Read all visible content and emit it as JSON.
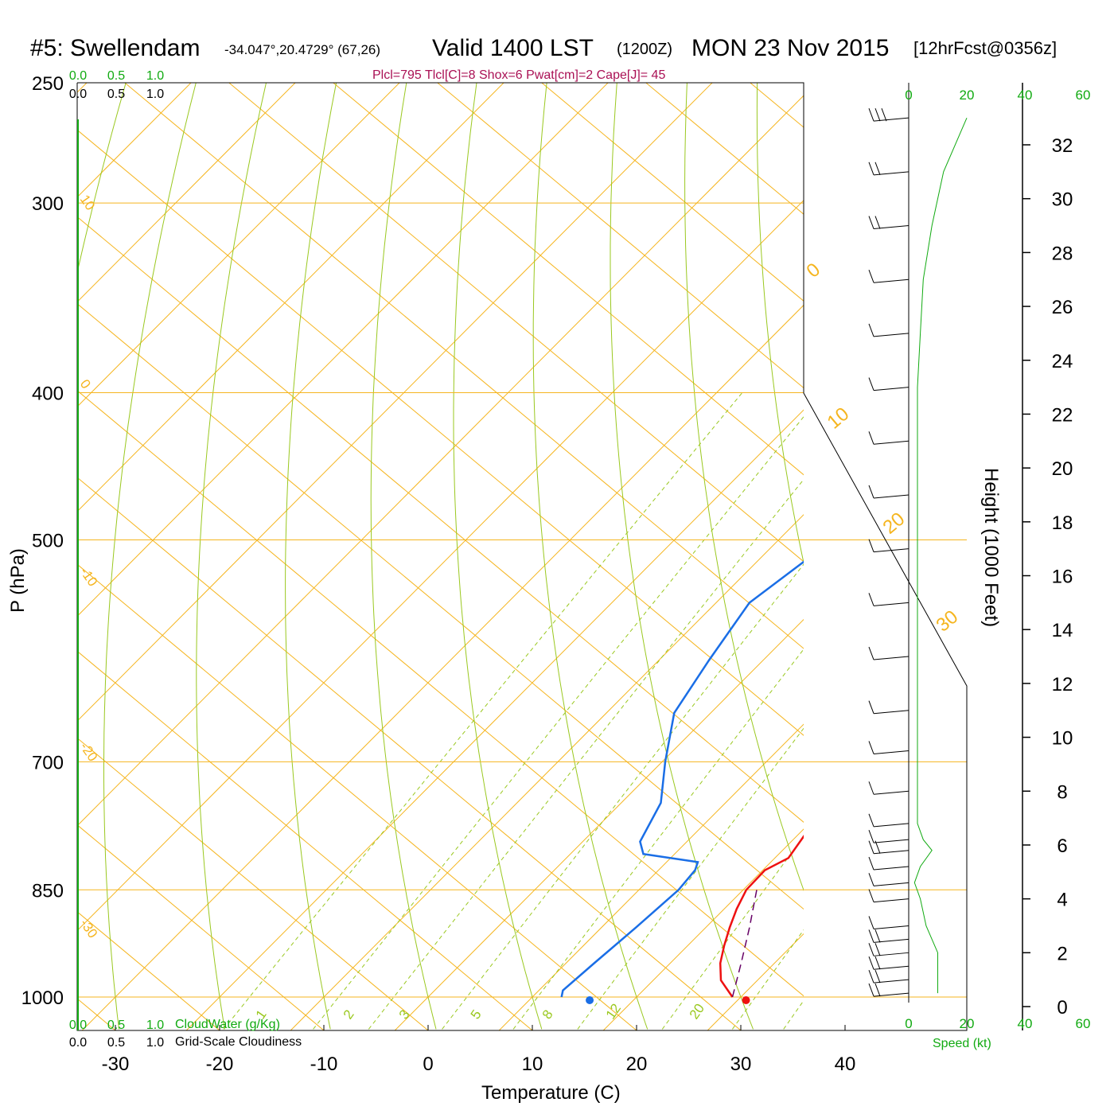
{
  "chart_data": {
    "type": "skew-t log-p sounding",
    "title": {
      "station": "#5: Swellendam",
      "coords": "-34.047°,20.4729° (67,26)",
      "valid": "Valid 1400 LST",
      "zulu": "(1200Z)",
      "date": "MON 23 Nov 2015",
      "forecast": "[12hrFcst@0356z]"
    },
    "indices": "Plcl=795 Tlcl[C]=8 Shox=6 Pwat[cm]=2 Cape[J]= 45",
    "xlabel": "Temperature (C)",
    "ylabel": "P (hPa)",
    "y2label": "Height (1000 Feet)",
    "x_range": [
      -30,
      40
    ],
    "x_ticks": [
      "-30",
      "-20",
      "-10",
      "0",
      "10",
      "20",
      "30",
      "40"
    ],
    "pressure_ticks": [
      "250",
      "300",
      "400",
      "500",
      "700",
      "850",
      "1000"
    ],
    "height_ticks": [
      "0",
      "2",
      "4",
      "6",
      "8",
      "10",
      "12",
      "14",
      "16",
      "18",
      "20",
      "22",
      "24",
      "26",
      "28",
      "30",
      "32"
    ],
    "cloud_scale": {
      "ticks": [
        "0.0",
        "0.5",
        "1.0"
      ],
      "cloud_water_label": "CloudWater (g/Kg)",
      "cloudiness_label": "Grid-Scale Cloudiness"
    },
    "speed_scale": {
      "ticks": [
        "0",
        "20",
        "40",
        "60"
      ],
      "label": "Speed (kt)"
    },
    "dry_adiabat_labels": [
      "10",
      "0",
      "-10",
      "-20",
      "-30"
    ],
    "moist_adiabat_labels": [
      "0",
      "10",
      "20",
      "30"
    ],
    "mixing_ratio_labels": [
      "1",
      "2",
      "3",
      "5",
      "8",
      "12",
      "20"
    ],
    "temperature_profile": [
      {
        "p": 1000,
        "t": 29.2
      },
      {
        "p": 975,
        "t": 26.5
      },
      {
        "p": 950,
        "t": 24.8
      },
      {
        "p": 925,
        "t": 23.5
      },
      {
        "p": 900,
        "t": 22.3
      },
      {
        "p": 875,
        "t": 21.2
      },
      {
        "p": 850,
        "t": 20.3
      },
      {
        "p": 825,
        "t": 20.2
      },
      {
        "p": 810,
        "t": 21.3
      },
      {
        "p": 775,
        "t": 20.5
      },
      {
        "p": 700,
        "t": 18.8
      },
      {
        "p": 650,
        "t": 17.8
      },
      {
        "p": 600,
        "t": 16.8
      },
      {
        "p": 550,
        "t": 15.3
      },
      {
        "p": 500,
        "t": 14.5
      },
      {
        "p": 450,
        "t": 13.3
      },
      {
        "p": 400,
        "t": 11.9
      },
      {
        "p": 350,
        "t": 9.2
      },
      {
        "p": 300,
        "t": 5.3
      },
      {
        "p": 270,
        "t": 1.9
      }
    ],
    "dewpoint_profile": [
      {
        "p": 1000,
        "t": 12.8
      },
      {
        "p": 990,
        "t": 12.3
      },
      {
        "p": 950,
        "t": 12.7
      },
      {
        "p": 900,
        "t": 13.3
      },
      {
        "p": 850,
        "t": 13.8
      },
      {
        "p": 825,
        "t": 13.5
      },
      {
        "p": 815,
        "t": 13.0
      },
      {
        "p": 805,
        "t": 7.0
      },
      {
        "p": 790,
        "t": 5.5
      },
      {
        "p": 745,
        "t": 3.8
      },
      {
        "p": 700,
        "t": 0.3
      },
      {
        "p": 650,
        "t": -3.5
      },
      {
        "p": 600,
        "t": -5.2
      },
      {
        "p": 550,
        "t": -6.8
      },
      {
        "p": 500,
        "t": -4.8
      },
      {
        "p": 470,
        "t": -1.5
      },
      {
        "p": 430,
        "t": 0.2
      },
      {
        "p": 400,
        "t": -0.9
      },
      {
        "p": 350,
        "t": -3.0
      },
      {
        "p": 320,
        "t": -6.9
      },
      {
        "p": 300,
        "t": -8.3
      },
      {
        "p": 285,
        "t": -8.3
      },
      {
        "p": 270,
        "t": -7.1
      }
    ],
    "parcel_path": [
      {
        "p": 1000,
        "t": 29.2
      },
      {
        "p": 950,
        "t": 26.8
      },
      {
        "p": 900,
        "t": 24.2
      },
      {
        "p": 850,
        "t": 21.3
      },
      {
        "p": 845,
        "t": 21.0
      }
    ],
    "surface_temperature": 30.5,
    "surface_dewpoint": 15.5,
    "wind_profile_kft": [
      {
        "h": 0.5,
        "kt": 10
      },
      {
        "h": 1.0,
        "kt": 10
      },
      {
        "h": 1.5,
        "kt": 10
      },
      {
        "h": 2.0,
        "kt": 10
      },
      {
        "h": 2.5,
        "kt": 8
      },
      {
        "h": 3.0,
        "kt": 6
      },
      {
        "h": 4.0,
        "kt": 4
      },
      {
        "h": 4.6,
        "kt": 2
      },
      {
        "h": 5.2,
        "kt": 4
      },
      {
        "h": 5.8,
        "kt": 8
      },
      {
        "h": 6.2,
        "kt": 5
      },
      {
        "h": 6.8,
        "kt": 3
      },
      {
        "h": 8.0,
        "kt": 3
      },
      {
        "h": 9.5,
        "kt": 3
      },
      {
        "h": 11.0,
        "kt": 3
      },
      {
        "h": 13.0,
        "kt": 3
      },
      {
        "h": 15.0,
        "kt": 3
      },
      {
        "h": 17.0,
        "kt": 3
      },
      {
        "h": 19.0,
        "kt": 3
      },
      {
        "h": 21.0,
        "kt": 3
      },
      {
        "h": 23.0,
        "kt": 3
      },
      {
        "h": 25.0,
        "kt": 4
      },
      {
        "h": 27.0,
        "kt": 5
      },
      {
        "h": 29.0,
        "kt": 8
      },
      {
        "h": 31.0,
        "kt": 12
      },
      {
        "h": 33.0,
        "kt": 20
      }
    ],
    "colors": {
      "temperature": "#ee1111",
      "dewpoint": "#1a6ee6",
      "parcel": "#660066",
      "isotherm_isobar": "#f5b51f",
      "dry_adiabat": "#9ac81f",
      "mixing_ratio": "#9ac81f",
      "axis_green": "#11aa11",
      "indices": "#aa1155"
    },
    "grid": true
  }
}
